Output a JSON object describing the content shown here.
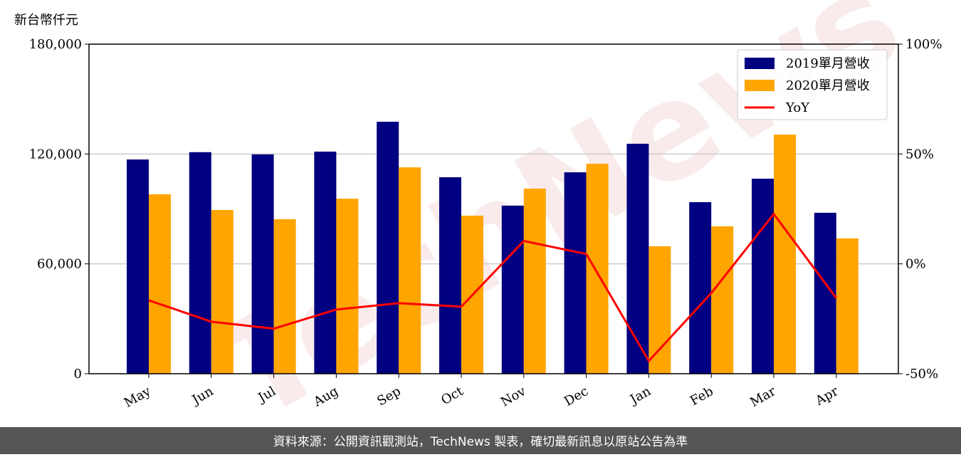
{
  "chart_data": {
    "type": "bar",
    "y_label": "新台幣仟元",
    "watermark": "TechNews",
    "footer": "資料來源：公開資訊觀測站，TechNews 製表，確切最新訊息以原站公告為準",
    "categories": [
      "May",
      "Jun",
      "Jul",
      "Aug",
      "Sep",
      "Oct",
      "Nov",
      "Dec",
      "Jan",
      "Feb",
      "Mar",
      "Apr"
    ],
    "series": [
      {
        "name": "2019單月營收",
        "color": "#000080",
        "values": [
          117000,
          121000,
          119800,
          121300,
          137600,
          107300,
          91800,
          110000,
          125600,
          93700,
          106500,
          87900
        ]
      },
      {
        "name": "2020單月營收",
        "color": "#ffa500",
        "values": [
          98000,
          89400,
          84400,
          95600,
          112700,
          86300,
          101100,
          114700,
          69600,
          80500,
          130600,
          73900
        ]
      },
      {
        "name": "YoY",
        "color": "#ff0000",
        "type": "line",
        "axis": "y2",
        "values": [
          -16.6,
          -26.3,
          -29.5,
          -20.8,
          -17.9,
          -19.5,
          10.4,
          4.5,
          -44.2,
          -13.3,
          22.7,
          -15.6
        ]
      }
    ],
    "ylim": [
      0,
      180000
    ],
    "yticks": [
      0,
      {
        "value": 60000,
        "label": "60,000"
      },
      {
        "value": 120000,
        "label": "120,000"
      },
      {
        "value": 180000,
        "label": "180,000"
      }
    ],
    "y2lim": [
      -50,
      100
    ],
    "y2ticks": [
      {
        "value": -50,
        "label": "-50%"
      },
      {
        "value": 0,
        "label": "0%"
      },
      {
        "value": 50,
        "label": "50%"
      },
      {
        "value": 100,
        "label": "100%"
      }
    ],
    "grid": true,
    "legend": "upper right"
  }
}
